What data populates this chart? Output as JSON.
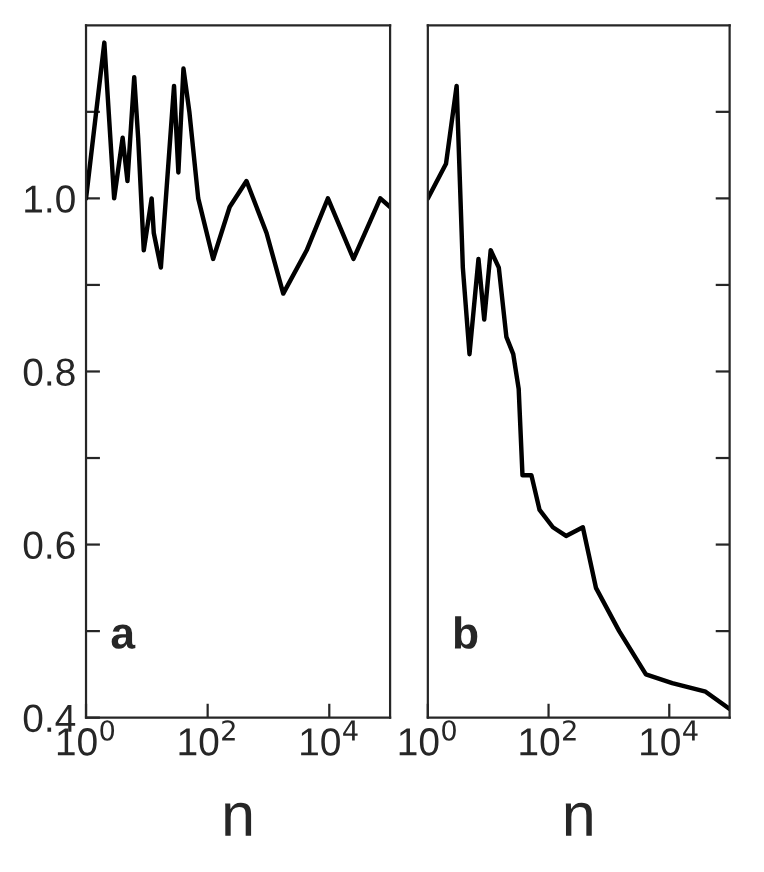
{
  "chart_data": [
    {
      "type": "line",
      "xlabel": "n",
      "annotations": [
        "a"
      ],
      "log": "x",
      "xlim": [
        1,
        100000
      ],
      "ylim": [
        0.4,
        1.2
      ],
      "xticks": [
        {
          "value": 1,
          "label": "10$^{0}$"
        },
        {
          "value": 100,
          "label": "10$^{2}$"
        },
        {
          "value": 10000,
          "label": "10$^{4}$"
        }
      ],
      "yticks": [
        {
          "value": 0.4,
          "label": "0.4"
        },
        {
          "value": 0.5,
          "label": null
        },
        {
          "value": 0.6,
          "label": "0.6"
        },
        {
          "value": 0.7,
          "label": null
        },
        {
          "value": 0.8,
          "label": "0.8"
        },
        {
          "value": 0.9,
          "label": null
        },
        {
          "value": 1.0,
          "label": "1.0"
        },
        {
          "value": 1.1,
          "label": null
        }
      ],
      "x": [
        1,
        2.0,
        2.9,
        4,
        4.8,
        6.2,
        7.2,
        8.9,
        12,
        13,
        17,
        28,
        33,
        40,
        50,
        70,
        123,
        230,
        435,
        930,
        1750,
        4250,
        9500,
        25000,
        69000,
        100000
      ],
      "series": [
        {
          "color": "#000000",
          "values": [
            1.0,
            1.18,
            1.0,
            1.07,
            1.02,
            1.14,
            1.07,
            0.94,
            1.0,
            0.96,
            0.92,
            1.13,
            1.03,
            1.15,
            1.1,
            1.0,
            0.93,
            0.99,
            1.02,
            0.96,
            0.89,
            0.94,
            1.0,
            0.93,
            1.0,
            0.99
          ]
        }
      ]
    },
    {
      "type": "line",
      "xlabel": "n",
      "annotations": [
        "b"
      ],
      "log": "x",
      "xlim": [
        1,
        100000
      ],
      "ylim": [
        0.4,
        1.2
      ],
      "tick_labels": "x",
      "xticks": [
        {
          "value": 1,
          "label": "10$^{0}$"
        },
        {
          "value": 100,
          "label": "10$^{2}$"
        },
        {
          "value": 10000,
          "label": "10$^{4}$"
        }
      ],
      "yticks": [
        {
          "value": 0.5,
          "label": null
        },
        {
          "value": 0.6,
          "label": null
        },
        {
          "value": 0.7,
          "label": null
        },
        {
          "value": 0.8,
          "label": null
        },
        {
          "value": 0.9,
          "label": null
        },
        {
          "value": 1.0,
          "label": null
        },
        {
          "value": 1.1,
          "label": null
        }
      ],
      "x": [
        1,
        2.0,
        3.0,
        3.8,
        4.9,
        6.9,
        8.6,
        11,
        15,
        20,
        26,
        32,
        37,
        52,
        71,
        118,
        195,
        370,
        610,
        1480,
        4100,
        11200,
        40000,
        100000
      ],
      "series": [
        {
          "color": "#000000",
          "values": [
            1.0,
            1.04,
            1.13,
            0.92,
            0.82,
            0.93,
            0.86,
            0.94,
            0.92,
            0.84,
            0.82,
            0.78,
            0.68,
            0.68,
            0.64,
            0.62,
            0.61,
            0.62,
            0.55,
            0.5,
            0.45,
            0.44,
            0.43,
            0.41
          ]
        }
      ]
    }
  ]
}
